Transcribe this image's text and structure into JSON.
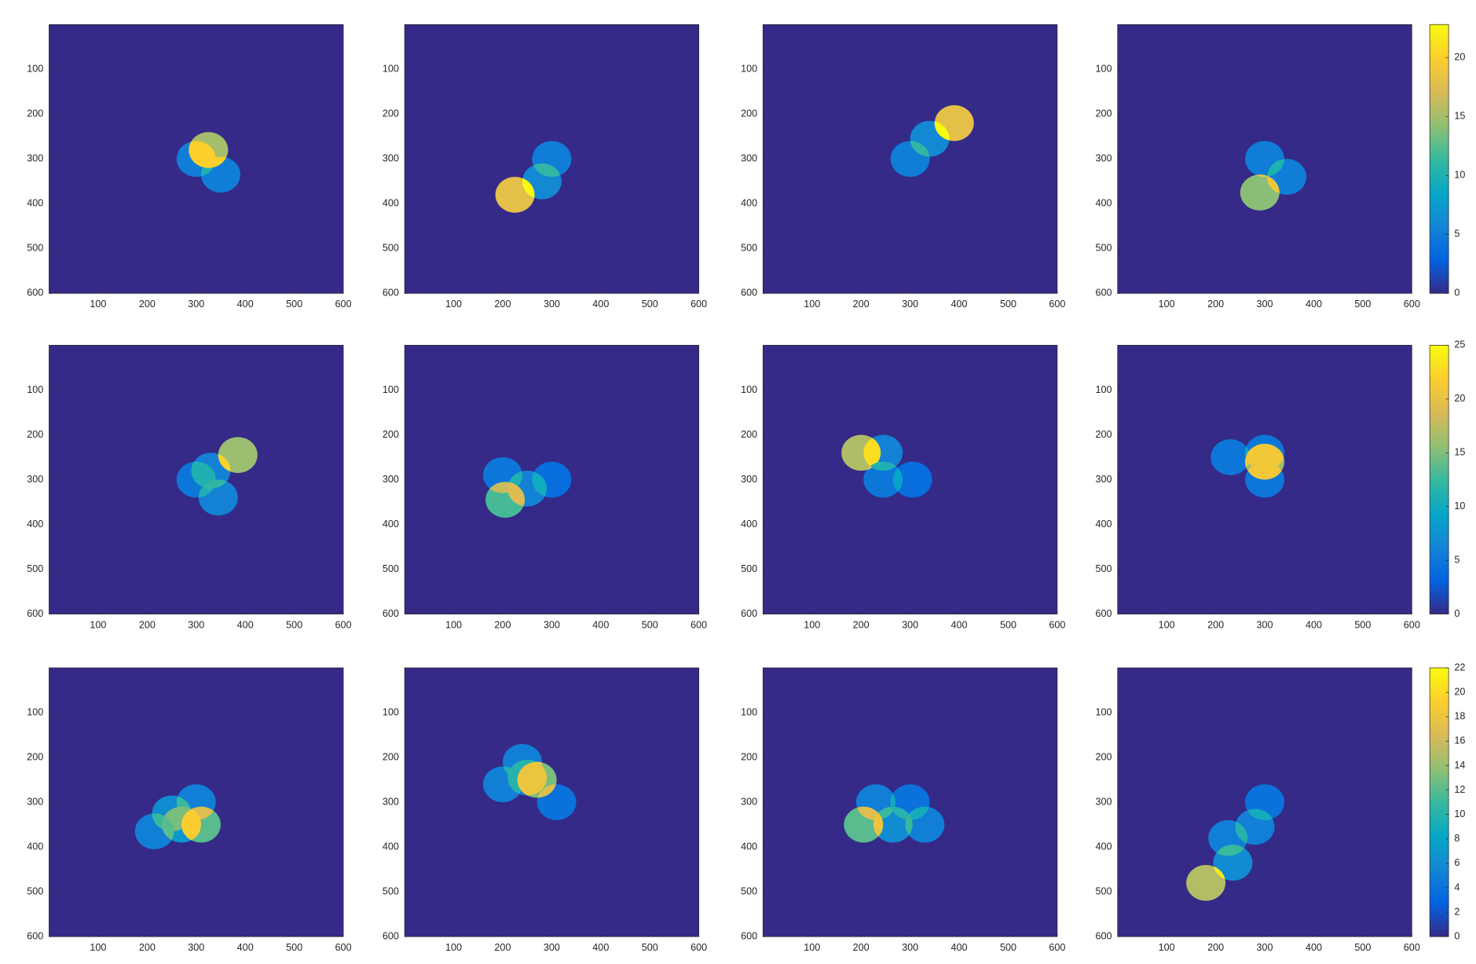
{
  "chart_data": [
    {
      "type": "heatmap",
      "xlim": [
        0,
        600
      ],
      "ylim": [
        0,
        600
      ],
      "y_reversed": true,
      "xticks": [
        100,
        200,
        300,
        400,
        500,
        600
      ],
      "yticks": [
        100,
        200,
        300,
        400,
        500,
        600
      ],
      "clim": [
        0,
        22.8
      ],
      "radius": 40,
      "circles": [
        {
          "x": 300,
          "y": 300,
          "value": 5
        },
        {
          "x": 325,
          "y": 280,
          "value": 15
        },
        {
          "x": 350,
          "y": 335,
          "value": 5
        }
      ]
    },
    {
      "type": "heatmap",
      "xlim": [
        0,
        600
      ],
      "ylim": [
        0,
        600
      ],
      "y_reversed": true,
      "xticks": [
        100,
        200,
        300,
        400,
        500,
        600
      ],
      "yticks": [
        100,
        200,
        300,
        400,
        500,
        600
      ],
      "clim": [
        0,
        22.8
      ],
      "radius": 40,
      "circles": [
        {
          "x": 300,
          "y": 300,
          "value": 5
        },
        {
          "x": 280,
          "y": 350,
          "value": 6
        },
        {
          "x": 225,
          "y": 380,
          "value": 18
        }
      ]
    },
    {
      "type": "heatmap",
      "xlim": [
        0,
        600
      ],
      "ylim": [
        0,
        600
      ],
      "y_reversed": true,
      "xticks": [
        100,
        200,
        300,
        400,
        500,
        600
      ],
      "yticks": [
        100,
        200,
        300,
        400,
        500,
        600
      ],
      "clim": [
        0,
        22.8
      ],
      "radius": 40,
      "circles": [
        {
          "x": 300,
          "y": 300,
          "value": 5
        },
        {
          "x": 340,
          "y": 255,
          "value": 6
        },
        {
          "x": 390,
          "y": 220,
          "value": 18
        }
      ]
    },
    {
      "type": "heatmap",
      "xlim": [
        0,
        600
      ],
      "ylim": [
        0,
        600
      ],
      "y_reversed": true,
      "xticks": [
        100,
        200,
        300,
        400,
        500,
        600
      ],
      "yticks": [
        100,
        200,
        300,
        400,
        500,
        600
      ],
      "clim": [
        0,
        22.8
      ],
      "radius": 40,
      "circles": [
        {
          "x": 300,
          "y": 300,
          "value": 5
        },
        {
          "x": 345,
          "y": 340,
          "value": 5
        },
        {
          "x": 290,
          "y": 375,
          "value": 14
        }
      ],
      "colorbar_ticks": [
        0,
        5,
        10,
        15,
        20
      ]
    },
    {
      "type": "heatmap",
      "xlim": [
        0,
        600
      ],
      "ylim": [
        0,
        600
      ],
      "y_reversed": true,
      "xticks": [
        100,
        200,
        300,
        400,
        500,
        600
      ],
      "yticks": [
        100,
        200,
        300,
        400,
        500,
        600
      ],
      "clim": [
        0,
        25
      ],
      "radius": 40,
      "circles": [
        {
          "x": 300,
          "y": 300,
          "value": 5
        },
        {
          "x": 330,
          "y": 280,
          "value": 6
        },
        {
          "x": 345,
          "y": 340,
          "value": 6
        },
        {
          "x": 385,
          "y": 245,
          "value": 16
        }
      ]
    },
    {
      "type": "heatmap",
      "xlim": [
        0,
        600
      ],
      "ylim": [
        0,
        600
      ],
      "y_reversed": true,
      "xticks": [
        100,
        200,
        300,
        400,
        500,
        600
      ],
      "yticks": [
        100,
        200,
        300,
        400,
        500,
        600
      ],
      "clim": [
        0,
        25
      ],
      "radius": 40,
      "circles": [
        {
          "x": 200,
          "y": 290,
          "value": 5
        },
        {
          "x": 300,
          "y": 300,
          "value": 4
        },
        {
          "x": 250,
          "y": 320,
          "value": 6
        },
        {
          "x": 205,
          "y": 345,
          "value": 13
        }
      ]
    },
    {
      "type": "heatmap",
      "xlim": [
        0,
        600
      ],
      "ylim": [
        0,
        600
      ],
      "y_reversed": true,
      "xticks": [
        100,
        200,
        300,
        400,
        500,
        600
      ],
      "yticks": [
        100,
        200,
        300,
        400,
        500,
        600
      ],
      "clim": [
        0,
        25
      ],
      "radius": 40,
      "circles": [
        {
          "x": 200,
          "y": 240,
          "value": 17
        },
        {
          "x": 245,
          "y": 240,
          "value": 6
        },
        {
          "x": 245,
          "y": 300,
          "value": 5
        },
        {
          "x": 305,
          "y": 300,
          "value": 4
        }
      ]
    },
    {
      "type": "heatmap",
      "xlim": [
        0,
        600
      ],
      "ylim": [
        0,
        600
      ],
      "y_reversed": true,
      "xticks": [
        100,
        200,
        300,
        400,
        500,
        600
      ],
      "yticks": [
        100,
        200,
        300,
        400,
        500,
        600
      ],
      "clim": [
        0,
        25
      ],
      "radius": 40,
      "circles": [
        {
          "x": 230,
          "y": 250,
          "value": 5
        },
        {
          "x": 300,
          "y": 240,
          "value": 5
        },
        {
          "x": 300,
          "y": 260,
          "value": 16
        },
        {
          "x": 300,
          "y": 300,
          "value": 5
        }
      ],
      "colorbar_ticks": [
        0,
        5,
        10,
        15,
        20,
        25
      ]
    },
    {
      "type": "heatmap",
      "xlim": [
        0,
        600
      ],
      "ylim": [
        0,
        600
      ],
      "y_reversed": true,
      "xticks": [
        100,
        200,
        300,
        400,
        500,
        600
      ],
      "yticks": [
        100,
        200,
        300,
        400,
        500,
        600
      ],
      "clim": [
        0,
        22
      ],
      "radius": 40,
      "circles": [
        {
          "x": 300,
          "y": 300,
          "value": 5
        },
        {
          "x": 250,
          "y": 325,
          "value": 6
        },
        {
          "x": 215,
          "y": 365,
          "value": 5
        },
        {
          "x": 270,
          "y": 350,
          "value": 7
        },
        {
          "x": 310,
          "y": 350,
          "value": 12
        }
      ]
    },
    {
      "type": "heatmap",
      "xlim": [
        0,
        600
      ],
      "ylim": [
        0,
        600
      ],
      "y_reversed": true,
      "xticks": [
        100,
        200,
        300,
        400,
        500,
        600
      ],
      "yticks": [
        100,
        200,
        300,
        400,
        500,
        600
      ],
      "clim": [
        0,
        22
      ],
      "radius": 40,
      "circles": [
        {
          "x": 240,
          "y": 210,
          "value": 5
        },
        {
          "x": 200,
          "y": 260,
          "value": 5
        },
        {
          "x": 310,
          "y": 300,
          "value": 4
        },
        {
          "x": 250,
          "y": 245,
          "value": 5
        },
        {
          "x": 270,
          "y": 250,
          "value": 13
        }
      ]
    },
    {
      "type": "heatmap",
      "xlim": [
        0,
        600
      ],
      "ylim": [
        0,
        600
      ],
      "y_reversed": true,
      "xticks": [
        100,
        200,
        300,
        400,
        500,
        600
      ],
      "yticks": [
        100,
        200,
        300,
        400,
        500,
        600
      ],
      "clim": [
        0,
        22
      ],
      "radius": 40,
      "circles": [
        {
          "x": 230,
          "y": 300,
          "value": 5
        },
        {
          "x": 300,
          "y": 300,
          "value": 4
        },
        {
          "x": 265,
          "y": 350,
          "value": 6
        },
        {
          "x": 330,
          "y": 350,
          "value": 5
        },
        {
          "x": 205,
          "y": 350,
          "value": 12
        }
      ]
    },
    {
      "type": "heatmap",
      "xlim": [
        0,
        600
      ],
      "ylim": [
        0,
        600
      ],
      "y_reversed": true,
      "xticks": [
        100,
        200,
        300,
        400,
        500,
        600
      ],
      "yticks": [
        100,
        200,
        300,
        400,
        500,
        600
      ],
      "clim": [
        0,
        22
      ],
      "radius": 40,
      "circles": [
        {
          "x": 300,
          "y": 300,
          "value": 4
        },
        {
          "x": 280,
          "y": 355,
          "value": 5
        },
        {
          "x": 225,
          "y": 380,
          "value": 5
        },
        {
          "x": 235,
          "y": 435,
          "value": 6
        },
        {
          "x": 180,
          "y": 480,
          "value": 15
        }
      ],
      "colorbar_ticks": [
        0,
        2,
        4,
        6,
        8,
        10,
        12,
        14,
        16,
        18,
        20,
        22
      ]
    }
  ]
}
